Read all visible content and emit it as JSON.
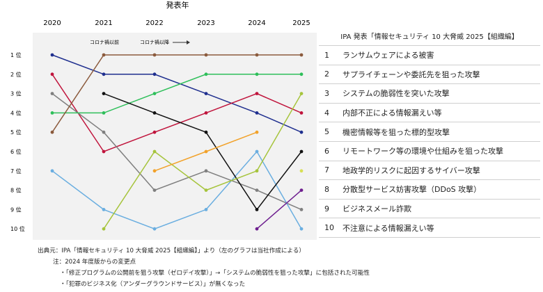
{
  "chart_data": {
    "type": "line",
    "title": "発表年",
    "x": [
      "2020",
      "2021",
      "2022",
      "2023",
      "2024",
      "2025"
    ],
    "y_categories": [
      "1 位",
      "2 位",
      "3 位",
      "4 位",
      "5 位",
      "6 位",
      "7 位",
      "8 位",
      "9 位",
      "10 位"
    ],
    "ylim": [
      1,
      10
    ],
    "y_inverted": true,
    "grid": false,
    "annotations": {
      "before": "コロナ禍以前",
      "after": "コロナ禍以降"
    },
    "series": [
      {
        "color": "#1f2f8f",
        "values": [
          1,
          2,
          2,
          3,
          4,
          5
        ]
      },
      {
        "color": "#c0143c",
        "values": [
          2,
          6,
          5,
          4,
          3,
          4
        ]
      },
      {
        "color": "#7f7f7f",
        "values": [
          3,
          5,
          8,
          7,
          8,
          9
        ]
      },
      {
        "color": "#2ebf5a",
        "values": [
          4,
          4,
          3,
          2,
          2,
          2
        ]
      },
      {
        "color": "#8b5a3c",
        "values": [
          5,
          1,
          1,
          1,
          1,
          1
        ]
      },
      {
        "color": "#6aaee0",
        "values": [
          7,
          9,
          10,
          9,
          6,
          10
        ]
      },
      {
        "color": "#111111",
        "values": [
          null,
          3,
          4,
          5,
          9,
          6
        ]
      },
      {
        "color": "#a6c43c",
        "values": [
          null,
          10,
          6,
          8,
          7,
          3
        ]
      },
      {
        "color": "#f2a22a",
        "values": [
          null,
          null,
          7,
          6,
          5,
          null
        ]
      },
      {
        "color": "#6e1f8f",
        "values": [
          null,
          null,
          null,
          null,
          10,
          8
        ]
      },
      {
        "color": "#d8df55",
        "values": [
          null,
          null,
          null,
          null,
          null,
          7
        ]
      }
    ]
  },
  "ranking": {
    "title": "IPA 発表「情報セキュリティ 10 大脅威 2025【組織編】",
    "items": [
      {
        "num": "1",
        "label": "ランサムウェアによる被害"
      },
      {
        "num": "2",
        "label": "サプライチェーンや委託先を狙った攻撃"
      },
      {
        "num": "3",
        "label": "システムの脆弱性を突いた攻撃"
      },
      {
        "num": "4",
        "label": "内部不正による情報漏えい等"
      },
      {
        "num": "5",
        "label": "機密情報等を狙った標的型攻撃"
      },
      {
        "num": "6",
        "label": "リモートワーク等の環境や仕組みを狙った攻撃"
      },
      {
        "num": "7",
        "label": "地政学的リスクに起因するサイバー攻撃"
      },
      {
        "num": "8",
        "label": "分散型サービス妨害攻撃（DDoS 攻撃）"
      },
      {
        "num": "9",
        "label": "ビジネスメール詐欺"
      },
      {
        "num": "10",
        "label": "不注意による情報漏えい等"
      }
    ]
  },
  "notes": {
    "source": "出典元：IPA「情報セキュリティ 10 大脅威 2025【組織編】」より（左のグラフは当社作成による）",
    "note_title": "注：2024 年度版からの変更点",
    "note_1": "・「修正プログラムの公開前を狙う攻撃（ゼロデイ攻撃）」→「システムの脆弱性を狙った攻撃」に包括された可能性",
    "note_2": "・「犯罪のビジネス化（アンダーグラウンドサービス）」が無くなった"
  }
}
